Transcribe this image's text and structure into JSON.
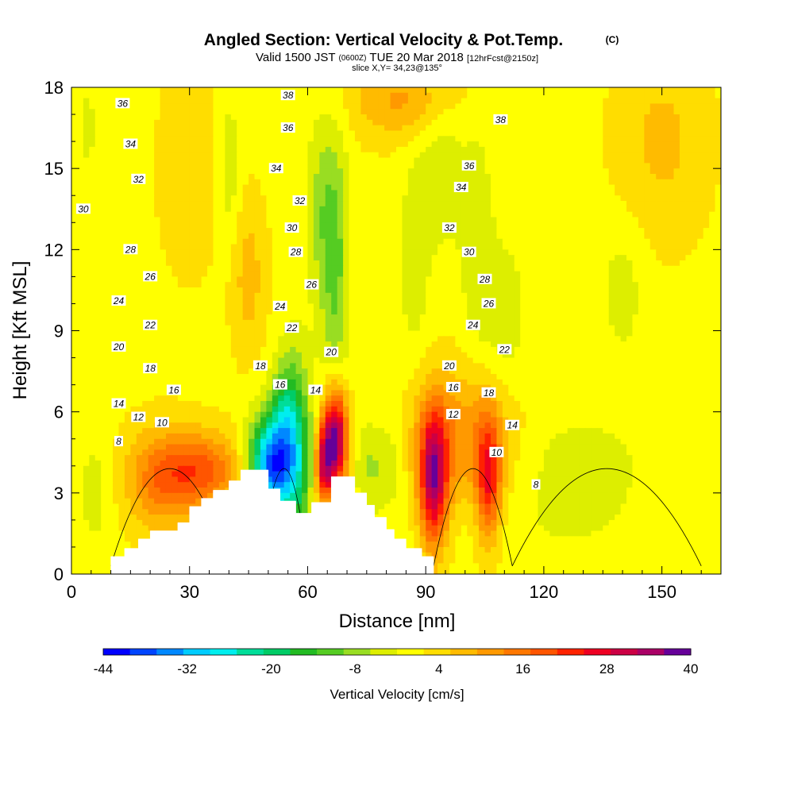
{
  "chart_data": {
    "type": "heatmap",
    "title": "Angled Section: Vertical Velocity & Pot.Temp.",
    "title_mark": "(C)",
    "subtitle": {
      "valid": "Valid 1500 JST",
      "utc": "(0600Z)",
      "date": "TUE 20 Mar 2018",
      "forecast": "[12hrFcst@2150z]",
      "slice": "slice X,Y= 34,23@135°"
    },
    "xlabel": "Distance [nm]",
    "ylabel": "Height [Kft MSL]",
    "xlim": [
      0,
      165
    ],
    "ylim": [
      0,
      18
    ],
    "xticks": [
      0,
      30,
      60,
      90,
      120,
      150
    ],
    "yticks": [
      0,
      3,
      6,
      9,
      12,
      15,
      18
    ],
    "grid": false,
    "colorbar": {
      "label": "Vertical Velocity [cm/s]",
      "min": -44,
      "max": 40,
      "step": 4,
      "tick_values": [
        -44,
        -32,
        -20,
        -8,
        4,
        16,
        28,
        40
      ],
      "colors": [
        "#0000ff",
        "#0044ff",
        "#0088ff",
        "#00ccff",
        "#00eeee",
        "#00dd99",
        "#00cc66",
        "#22bb22",
        "#55cc22",
        "#99dd22",
        "#ddee00",
        "#ffff00",
        "#ffdd00",
        "#ffbb00",
        "#ff9900",
        "#ff7700",
        "#ff5500",
        "#ff2200",
        "#ee0022",
        "#cc0044",
        "#aa0066",
        "#660099"
      ]
    },
    "velocity_features": [
      {
        "x": 51,
        "y": 4.0,
        "sx": 4,
        "sy": 1.3,
        "value": -40
      },
      {
        "x": 57,
        "y": 4.5,
        "sx": 3,
        "sy": 2.5,
        "value": -18
      },
      {
        "x": 54,
        "y": 6.2,
        "sx": 2.5,
        "sy": 1.2,
        "value": -10
      },
      {
        "x": 67,
        "y": 11.5,
        "sx": 2.5,
        "sy": 3.5,
        "value": -12
      },
      {
        "x": 63,
        "y": 13.5,
        "sx": 2.5,
        "sy": 2.5,
        "value": -7
      },
      {
        "x": 67,
        "y": 5.0,
        "sx": 2.2,
        "sy": 1.3,
        "value": 40
      },
      {
        "x": 64,
        "y": 4.0,
        "sx": 1.5,
        "sy": 1.0,
        "value": 25
      },
      {
        "x": 92,
        "y": 3.5,
        "sx": 2.5,
        "sy": 1.8,
        "value": 32
      },
      {
        "x": 106,
        "y": 3.5,
        "sx": 2.2,
        "sy": 1.7,
        "value": 22
      },
      {
        "x": 99,
        "y": 5.0,
        "sx": 10,
        "sy": 1.8,
        "value": 12
      },
      {
        "x": 33,
        "y": 3.8,
        "sx": 7,
        "sy": 1.0,
        "value": 18
      },
      {
        "x": 22,
        "y": 3.5,
        "sx": 6,
        "sy": 1.3,
        "value": 13
      },
      {
        "x": 6,
        "y": 3.0,
        "sx": 3,
        "sy": 1.5,
        "value": -5
      },
      {
        "x": 76,
        "y": 4.0,
        "sx": 3,
        "sy": 1.2,
        "value": -8
      },
      {
        "x": 82,
        "y": 4.2,
        "sx": 2.5,
        "sy": 1.5,
        "value": -5
      },
      {
        "x": 94,
        "y": 15.5,
        "sx": 4,
        "sy": 2.5,
        "value": -6
      },
      {
        "x": 87,
        "y": 11.5,
        "sx": 3,
        "sy": 3.0,
        "value": -5
      },
      {
        "x": 103,
        "y": 12.5,
        "sx": 3,
        "sy": 3.0,
        "value": -6
      },
      {
        "x": 110,
        "y": 9.5,
        "sx": 4,
        "sy": 2.0,
        "value": -6
      },
      {
        "x": 128,
        "y": 4.0,
        "sx": 14,
        "sy": 1.5,
        "value": -5
      },
      {
        "x": 140,
        "y": 10.5,
        "sx": 4,
        "sy": 1.8,
        "value": -5
      },
      {
        "x": 40,
        "y": 15.0,
        "sx": 2,
        "sy": 2.0,
        "value": -6
      },
      {
        "x": 4,
        "y": 16.5,
        "sx": 1.5,
        "sy": 1.2,
        "value": -5
      },
      {
        "x": 45,
        "y": 11.0,
        "sx": 3,
        "sy": 2.0,
        "value": 7
      },
      {
        "x": 30,
        "y": 15.0,
        "sx": 5,
        "sy": 2.5,
        "value": 5
      },
      {
        "x": 150,
        "y": 16.0,
        "sx": 8,
        "sy": 2.5,
        "value": 6
      },
      {
        "x": 85,
        "y": 17.5,
        "sx": 10,
        "sy": 1.0,
        "value": 10
      },
      {
        "x": 120,
        "y": 1.5,
        "sx": 25,
        "sy": 1.0,
        "value": -2
      }
    ],
    "theta_contours": {
      "levels": [
        8,
        10,
        12,
        14,
        16,
        18,
        20,
        22,
        24,
        26,
        28,
        30,
        32,
        34,
        36,
        38
      ],
      "labels": [
        {
          "x": 13,
          "y": 17.4,
          "text": "36"
        },
        {
          "x": 55,
          "y": 17.7,
          "text": "38"
        },
        {
          "x": 55,
          "y": 16.5,
          "text": "36"
        },
        {
          "x": 109,
          "y": 16.8,
          "text": "38"
        },
        {
          "x": 15,
          "y": 15.9,
          "text": "34"
        },
        {
          "x": 52,
          "y": 15.0,
          "text": "34"
        },
        {
          "x": 101,
          "y": 15.1,
          "text": "36"
        },
        {
          "x": 17,
          "y": 14.6,
          "text": "32"
        },
        {
          "x": 58,
          "y": 13.8,
          "text": "32"
        },
        {
          "x": 99,
          "y": 14.3,
          "text": "34"
        },
        {
          "x": 3,
          "y": 13.5,
          "text": "30"
        },
        {
          "x": 56,
          "y": 12.8,
          "text": "30"
        },
        {
          "x": 96,
          "y": 12.8,
          "text": "32"
        },
        {
          "x": 15,
          "y": 12.0,
          "text": "28"
        },
        {
          "x": 57,
          "y": 11.9,
          "text": "28"
        },
        {
          "x": 101,
          "y": 11.9,
          "text": "30"
        },
        {
          "x": 20,
          "y": 11.0,
          "text": "26"
        },
        {
          "x": 61,
          "y": 10.7,
          "text": "26"
        },
        {
          "x": 105,
          "y": 10.9,
          "text": "28"
        },
        {
          "x": 12,
          "y": 10.1,
          "text": "24"
        },
        {
          "x": 53,
          "y": 9.9,
          "text": "24"
        },
        {
          "x": 106,
          "y": 10.0,
          "text": "26"
        },
        {
          "x": 20,
          "y": 9.2,
          "text": "22"
        },
        {
          "x": 56,
          "y": 9.1,
          "text": "22"
        },
        {
          "x": 102,
          "y": 9.2,
          "text": "24"
        },
        {
          "x": 12,
          "y": 8.4,
          "text": "20"
        },
        {
          "x": 66,
          "y": 8.2,
          "text": "20"
        },
        {
          "x": 110,
          "y": 8.3,
          "text": "22"
        },
        {
          "x": 20,
          "y": 7.6,
          "text": "18"
        },
        {
          "x": 48,
          "y": 7.7,
          "text": "18"
        },
        {
          "x": 96,
          "y": 7.7,
          "text": "20"
        },
        {
          "x": 26,
          "y": 6.8,
          "text": "16"
        },
        {
          "x": 53,
          "y": 7.0,
          "text": "16"
        },
        {
          "x": 97,
          "y": 6.9,
          "text": "16"
        },
        {
          "x": 12,
          "y": 6.3,
          "text": "14"
        },
        {
          "x": 62,
          "y": 6.8,
          "text": "14"
        },
        {
          "x": 106,
          "y": 6.7,
          "text": "18"
        },
        {
          "x": 17,
          "y": 5.8,
          "text": "12"
        },
        {
          "x": 97,
          "y": 5.9,
          "text": "12"
        },
        {
          "x": 112,
          "y": 5.5,
          "text": "14"
        },
        {
          "x": 23,
          "y": 5.6,
          "text": "10"
        },
        {
          "x": 108,
          "y": 4.5,
          "text": "10"
        },
        {
          "x": 12,
          "y": 4.9,
          "text": "8"
        },
        {
          "x": 118,
          "y": 3.3,
          "text": "8"
        }
      ]
    },
    "terrain": [
      [
        0,
        0
      ],
      [
        10,
        0
      ],
      [
        10,
        0.65
      ],
      [
        13.5,
        0.65
      ],
      [
        13.5,
        0.95
      ],
      [
        17,
        0.95
      ],
      [
        17,
        1.3
      ],
      [
        20,
        1.3
      ],
      [
        20,
        1.6
      ],
      [
        27,
        1.6
      ],
      [
        27,
        1.9
      ],
      [
        30,
        1.9
      ],
      [
        30,
        2.5
      ],
      [
        33,
        2.5
      ],
      [
        33,
        2.8
      ],
      [
        36,
        2.8
      ],
      [
        36,
        3.1
      ],
      [
        40,
        3.1
      ],
      [
        40,
        3.45
      ],
      [
        43,
        3.45
      ],
      [
        43,
        3.85
      ],
      [
        50,
        3.85
      ],
      [
        50,
        3.15
      ],
      [
        53,
        3.15
      ],
      [
        53,
        2.7
      ],
      [
        57,
        2.7
      ],
      [
        57,
        2.25
      ],
      [
        61,
        2.25
      ],
      [
        61,
        2.65
      ],
      [
        66,
        2.65
      ],
      [
        66,
        3.6
      ],
      [
        72,
        3.6
      ],
      [
        72,
        3.0
      ],
      [
        75,
        3.0
      ],
      [
        75,
        2.55
      ],
      [
        77,
        2.55
      ],
      [
        77,
        2.1
      ],
      [
        80,
        2.1
      ],
      [
        80,
        1.65
      ],
      [
        82,
        1.65
      ],
      [
        82,
        1.3
      ],
      [
        85,
        1.3
      ],
      [
        85,
        0.95
      ],
      [
        89,
        0.95
      ],
      [
        89,
        0.65
      ],
      [
        92,
        0.65
      ],
      [
        92,
        0
      ],
      [
        0,
        0
      ]
    ]
  }
}
